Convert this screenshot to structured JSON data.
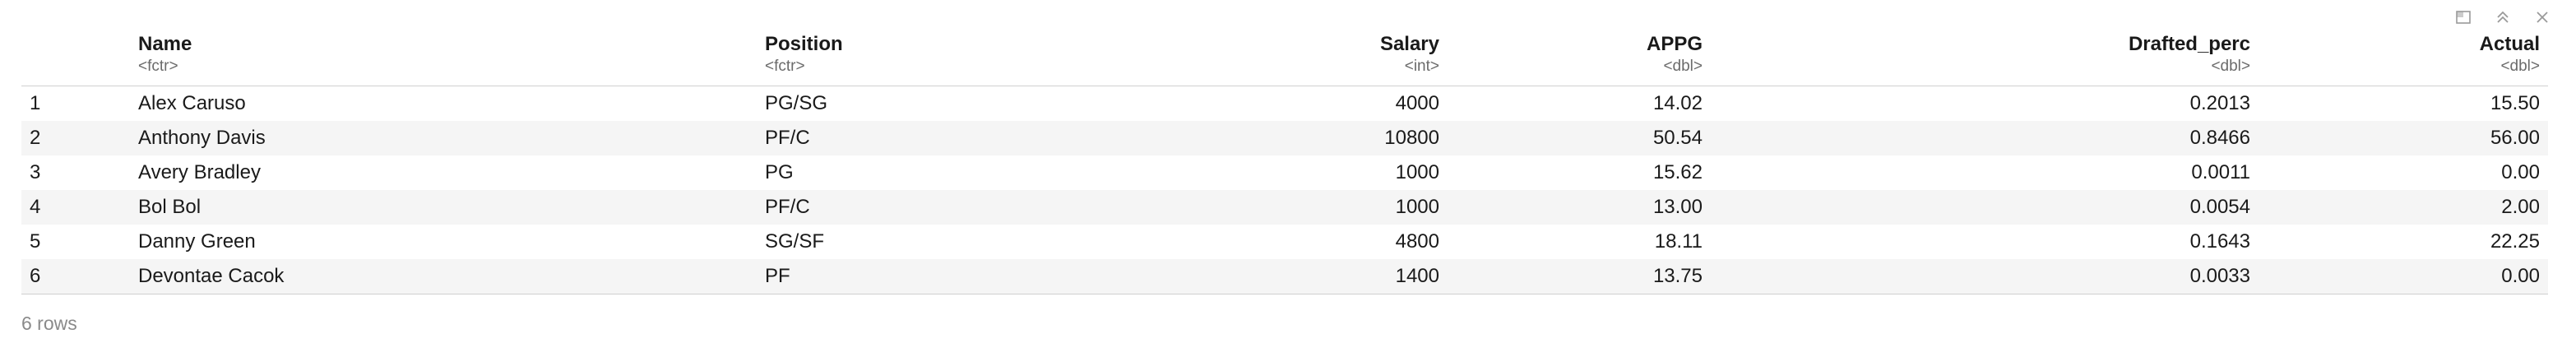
{
  "toolbar": {
    "items": [
      {
        "name": "popout-icon"
      },
      {
        "name": "collapse-icon"
      },
      {
        "name": "close-icon"
      }
    ],
    "icon_color": "#9a9a9a"
  },
  "table": {
    "columns": [
      {
        "label": "",
        "type": ""
      },
      {
        "label": "Name",
        "type": "<fctr>"
      },
      {
        "label": "Position",
        "type": "<fctr>"
      },
      {
        "label": "Salary",
        "type": "<int>"
      },
      {
        "label": "APPG",
        "type": "<dbl>"
      },
      {
        "label": "Drafted_perc",
        "type": "<dbl>"
      },
      {
        "label": "Actual",
        "type": "<dbl>"
      }
    ],
    "rows": [
      [
        "1",
        "Alex Caruso",
        "PG/SG",
        "4000",
        "14.02",
        "0.2013",
        "15.50"
      ],
      [
        "2",
        "Anthony Davis",
        "PF/C",
        "10800",
        "50.54",
        "0.8466",
        "56.00"
      ],
      [
        "3",
        "Avery Bradley",
        "PG",
        "1000",
        "15.62",
        "0.0011",
        "0.00"
      ],
      [
        "4",
        "Bol Bol",
        "PF/C",
        "1000",
        "13.00",
        "0.0054",
        "2.00"
      ],
      [
        "5",
        "Danny Green",
        "SG/SF",
        "4800",
        "18.11",
        "0.1643",
        "22.25"
      ],
      [
        "6",
        "Devontae Cacok",
        "PF",
        "1400",
        "13.75",
        "0.0033",
        "0.00"
      ]
    ]
  },
  "footer": {
    "row_count": "6 rows"
  }
}
